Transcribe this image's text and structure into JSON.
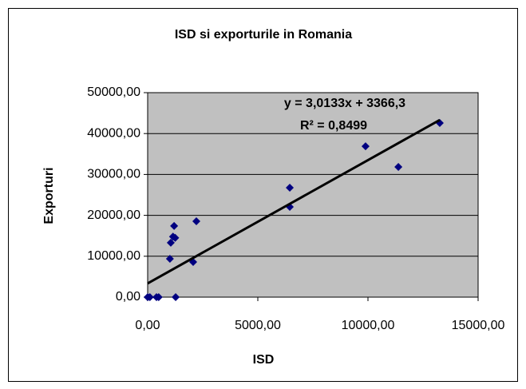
{
  "chart_data": {
    "type": "scatter",
    "title": "ISD si exporturile in Romania",
    "x_label": "ISD",
    "y_label": "Exporturi",
    "series": [
      {
        "name": "Exporturi",
        "color": "#000080",
        "x": [
          0,
          100,
          400,
          500,
          1270,
          1010,
          1050,
          1150,
          1200,
          1250,
          2065,
          2210,
          6450,
          6450,
          9890,
          11380,
          13260
        ],
        "values": [
          0,
          0,
          0,
          0,
          0,
          9370,
          13300,
          14800,
          17400,
          14500,
          8600,
          18550,
          26760,
          22070,
          36900,
          31840,
          42580
        ]
      }
    ],
    "trendline": {
      "slope": 3.0133,
      "intercept": 3366.3,
      "color": "#000000",
      "equation": "y = 3,0133x + 3366,3",
      "r_squared": "R² = 0,8499"
    },
    "xlim": [
      0,
      15000
    ],
    "xticks": [
      {
        "value": 0,
        "label": "0,00"
      },
      {
        "value": 5000,
        "label": "5000,00"
      },
      {
        "value": 10000,
        "label": "10000,00"
      },
      {
        "value": 15000,
        "label": "15000,00"
      }
    ],
    "ylim": [
      0,
      50000
    ],
    "yticks": [
      {
        "value": 0,
        "label": "0,00"
      },
      {
        "value": 10000,
        "label": "10000,00"
      },
      {
        "value": 20000,
        "label": "20000,00"
      },
      {
        "value": 30000,
        "label": "30000,00"
      },
      {
        "value": 40000,
        "label": "40000,00"
      },
      {
        "value": 50000,
        "label": "50000,00"
      }
    ],
    "grid": true,
    "plot_background": "#c0c0c0"
  }
}
